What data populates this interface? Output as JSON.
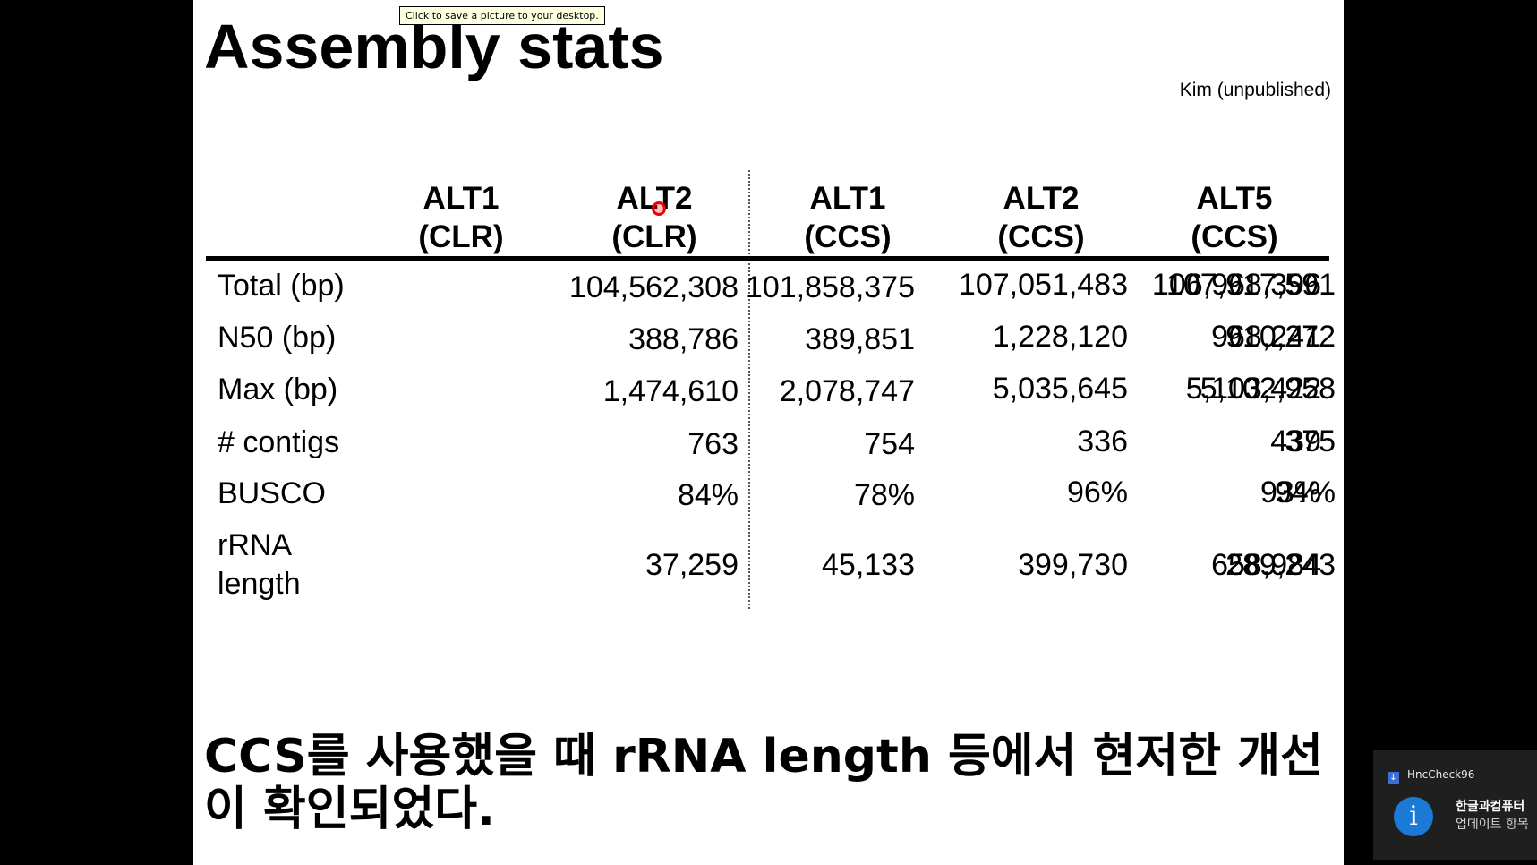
{
  "tooltip": "Click to save a picture to your desktop.",
  "slide": {
    "title": "Assembly stats",
    "credit": "Kim (unpublished)",
    "conclusion": "CCS를 사용했을 때 rRNA length 등에서 현저한 개선이 확인되었다."
  },
  "table": {
    "columns": [
      {
        "line1": "ALT1",
        "line2": "(CLR)"
      },
      {
        "line1": "ALT2",
        "line2": "(CLR)"
      },
      {
        "line1": "ALT1",
        "line2": "(CCS)"
      },
      {
        "line1": "ALT2",
        "line2": "(CCS)"
      },
      {
        "line1": "ALT5",
        "line2": "(CCS)"
      }
    ],
    "rows": [
      {
        "label": "Total (bp)",
        "values": [
          "104,562,308",
          "101,858,375",
          "107,051,483",
          "106,968,396",
          "107,917,591"
        ]
      },
      {
        "label": "N50 (bp)",
        "values": [
          "388,786",
          "389,851",
          "1,228,120",
          "968,241",
          "910,272"
        ]
      },
      {
        "label": "Max (bp)",
        "values": [
          "1,474,610",
          "2,078,747",
          "5,035,645",
          "5,103,422",
          "5,102,958"
        ]
      },
      {
        "label": "# contigs",
        "values": [
          "763",
          "754",
          "336",
          "439",
          "375"
        ]
      },
      {
        "label": "BUSCO",
        "values": [
          "84%",
          "78%",
          "96%",
          "93%",
          "94%"
        ]
      },
      {
        "label_line1": "rRNA",
        "label_line2": "length",
        "values": [
          "37,259",
          "45,133",
          "399,730",
          "658,984",
          "289,243"
        ]
      }
    ]
  },
  "notification": {
    "app": "HncCheck96",
    "title": "한글과컴퓨터",
    "body": "업데이트 항목",
    "icon": "info-icon"
  }
}
